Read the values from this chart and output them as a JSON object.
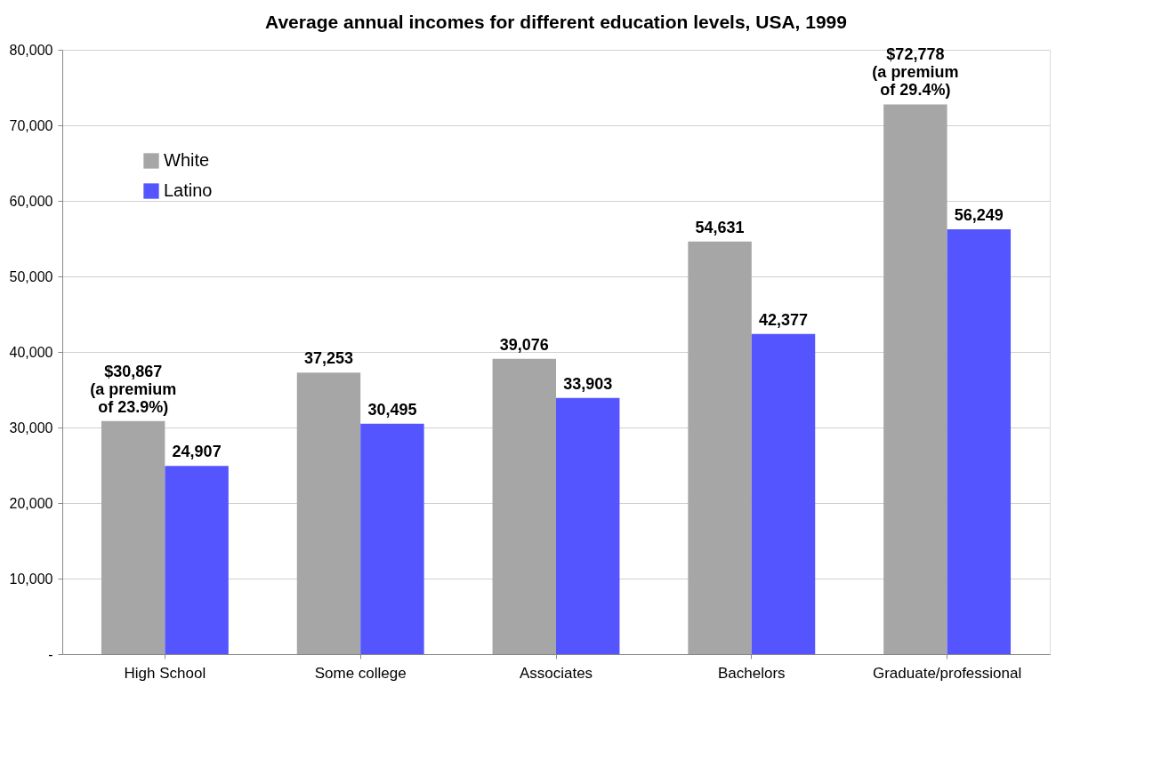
{
  "chart_data": {
    "type": "bar",
    "title": "Average annual incomes for different education levels, USA, 1999",
    "categories": [
      "High School",
      "Some college",
      "Associates",
      "Bachelors",
      "Graduate/professional"
    ],
    "series": [
      {
        "name": "White",
        "color": "#a6a6a6",
        "values": [
          30867,
          37253,
          39076,
          54631,
          72778
        ],
        "value_labels": [
          "$30,867",
          "37,253",
          "39,076",
          "54,631",
          "$72,778"
        ]
      },
      {
        "name": "Latino",
        "color": "#5555ff",
        "values": [
          24907,
          30495,
          33903,
          42377,
          56249
        ],
        "value_labels": [
          "24,907",
          "30,495",
          "33,903",
          "42,377",
          "56,249"
        ]
      }
    ],
    "annotations": [
      {
        "text": "(a premium of 23.9%)",
        "x": "High School",
        "y": 30867
      },
      {
        "text": "(a premium of 29.4%)",
        "x": "Graduate/professional",
        "y": 72778
      }
    ],
    "ylim": [
      0,
      80000
    ],
    "yticks": [
      {
        "value": 0,
        "label": "-"
      },
      {
        "value": 10000,
        "label": "10,000"
      },
      {
        "value": 20000,
        "label": "20,000"
      },
      {
        "value": 30000,
        "label": "30,000"
      },
      {
        "value": 40000,
        "label": "40,000"
      },
      {
        "value": 50000,
        "label": "50,000"
      },
      {
        "value": 60000,
        "label": "60,000"
      },
      {
        "value": 70000,
        "label": "70,000"
      },
      {
        "value": 80000,
        "label": "80,000"
      }
    ],
    "grid": "y",
    "legend": "top left"
  }
}
